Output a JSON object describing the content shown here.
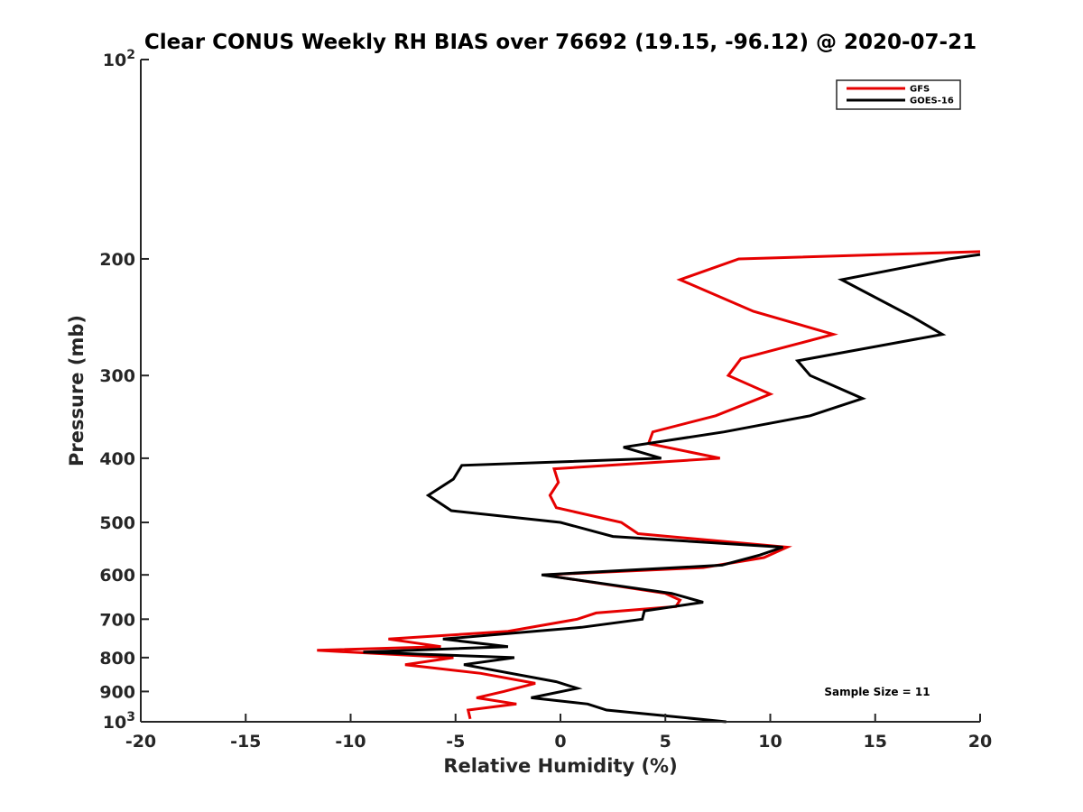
{
  "chart_data": {
    "type": "line",
    "title": "Clear CONUS Weekly RH BIAS over 76692 (19.15, -96.12) @ 2020-07-21",
    "xlabel": "Relative Humidity (%)",
    "ylabel": "Pressure (mb)",
    "xlim": [
      -20,
      20
    ],
    "ylim": [
      100,
      1000
    ],
    "yscale": "log",
    "y_reversed": true,
    "grid": false,
    "x_ticks": [
      -20,
      -15,
      -10,
      -5,
      0,
      5,
      10,
      15,
      20
    ],
    "x_tick_labels": [
      "-20",
      "-15",
      "-10",
      "-5",
      "0",
      "5",
      "10",
      "15",
      "20"
    ],
    "y_ticks": [
      100,
      200,
      300,
      400,
      500,
      600,
      700,
      800,
      900,
      1000
    ],
    "y_tick_labels": [
      {
        "base": "10",
        "exp": "2"
      },
      {
        "base": "200",
        "exp": ""
      },
      {
        "base": "300",
        "exp": ""
      },
      {
        "base": "400",
        "exp": ""
      },
      {
        "base": "500",
        "exp": ""
      },
      {
        "base": "600",
        "exp": ""
      },
      {
        "base": "700",
        "exp": ""
      },
      {
        "base": "800",
        "exp": ""
      },
      {
        "base": "900",
        "exp": ""
      },
      {
        "base": "10",
        "exp": "3"
      }
    ],
    "legend_position": "top-right",
    "annotation": "Sample Size = 11",
    "series": [
      {
        "name": "GFS",
        "color": "#e60000",
        "points": [
          [
            20.0,
            195
          ],
          [
            8.5,
            200
          ],
          [
            5.7,
            215
          ],
          [
            9.2,
            240
          ],
          [
            13.0,
            260
          ],
          [
            8.6,
            283
          ],
          [
            8.0,
            300
          ],
          [
            10.0,
            320
          ],
          [
            7.4,
            345
          ],
          [
            4.4,
            365
          ],
          [
            4.2,
            380
          ],
          [
            7.6,
            400
          ],
          [
            -0.3,
            415
          ],
          [
            -0.1,
            435
          ],
          [
            -0.5,
            455
          ],
          [
            -0.2,
            475
          ],
          [
            2.9,
            500
          ],
          [
            3.7,
            520
          ],
          [
            10.8,
            545
          ],
          [
            9.7,
            565
          ],
          [
            6.8,
            585
          ],
          [
            -0.8,
            600
          ],
          [
            5.0,
            640
          ],
          [
            5.7,
            655
          ],
          [
            5.5,
            670
          ],
          [
            1.7,
            685
          ],
          [
            0.8,
            700
          ],
          [
            -2.5,
            730
          ],
          [
            -8.2,
            750
          ],
          [
            -5.7,
            770
          ],
          [
            -11.6,
            780
          ],
          [
            -5.1,
            800
          ],
          [
            -7.4,
            820
          ],
          [
            -3.8,
            845
          ],
          [
            -1.2,
            875
          ],
          [
            -2.7,
            900
          ],
          [
            -4.0,
            920
          ],
          [
            -2.1,
            940
          ],
          [
            -4.4,
            960
          ],
          [
            -4.3,
            990
          ]
        ]
      },
      {
        "name": "GOES-16",
        "color": "#000000",
        "points": [
          [
            20.0,
            197
          ],
          [
            18.5,
            200
          ],
          [
            13.4,
            215
          ],
          [
            16.8,
            245
          ],
          [
            18.2,
            260
          ],
          [
            11.3,
            285
          ],
          [
            11.9,
            300
          ],
          [
            14.4,
            325
          ],
          [
            11.9,
            345
          ],
          [
            7.8,
            365
          ],
          [
            3.0,
            385
          ],
          [
            4.8,
            400
          ],
          [
            -4.7,
            410
          ],
          [
            -5.1,
            430
          ],
          [
            -6.3,
            455
          ],
          [
            -5.2,
            480
          ],
          [
            0.0,
            500
          ],
          [
            2.5,
            525
          ],
          [
            10.6,
            545
          ],
          [
            9.5,
            560
          ],
          [
            7.7,
            580
          ],
          [
            -0.9,
            600
          ],
          [
            5.3,
            640
          ],
          [
            6.8,
            660
          ],
          [
            4.0,
            680
          ],
          [
            3.9,
            700
          ],
          [
            1.0,
            720
          ],
          [
            -5.6,
            750
          ],
          [
            -2.5,
            770
          ],
          [
            -9.4,
            785
          ],
          [
            -2.2,
            800
          ],
          [
            -4.6,
            820
          ],
          [
            -0.2,
            870
          ],
          [
            0.8,
            890
          ],
          [
            -1.4,
            920
          ],
          [
            1.3,
            940
          ],
          [
            2.2,
            960
          ],
          [
            7.9,
            1000
          ]
        ]
      }
    ]
  }
}
